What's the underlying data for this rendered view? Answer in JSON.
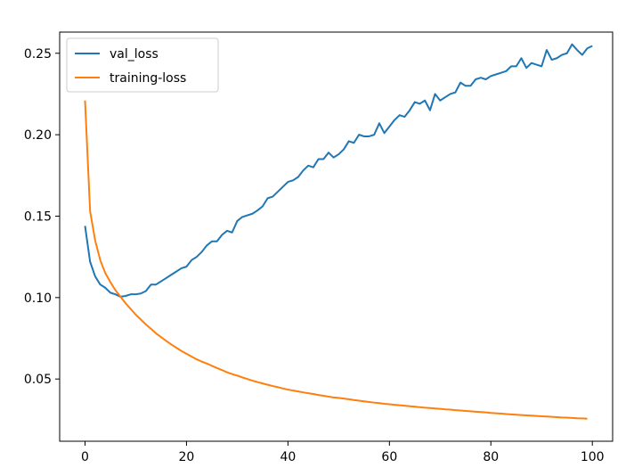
{
  "chart_data": {
    "type": "line",
    "title": "",
    "xlabel": "",
    "ylabel": "",
    "xlim": [
      -5,
      104
    ],
    "ylim": [
      0.0118,
      0.263
    ],
    "grid": false,
    "legend_position": "top-left",
    "x_ticks": [
      {
        "value": 0,
        "label": "0"
      },
      {
        "value": 20,
        "label": "20"
      },
      {
        "value": 40,
        "label": "40"
      },
      {
        "value": 60,
        "label": "60"
      },
      {
        "value": 80,
        "label": "80"
      },
      {
        "value": 100,
        "label": "100"
      }
    ],
    "y_ticks": [
      {
        "value": 0.05,
        "label": "0.05"
      },
      {
        "value": 0.1,
        "label": "0.10"
      },
      {
        "value": 0.15,
        "label": "0.15"
      },
      {
        "value": 0.2,
        "label": "0.20"
      },
      {
        "value": 0.25,
        "label": "0.25"
      }
    ],
    "series": [
      {
        "name": "val_loss",
        "color": "#1f77b4",
        "values": [
          0.144,
          0.122,
          0.113,
          0.108,
          0.106,
          0.103,
          0.102,
          0.1005,
          0.101,
          0.102,
          0.102,
          0.1025,
          0.104,
          0.108,
          0.108,
          0.11,
          0.112,
          0.114,
          0.116,
          0.118,
          0.119,
          0.123,
          0.125,
          0.128,
          0.132,
          0.1345,
          0.1345,
          0.1385,
          0.141,
          0.14,
          0.147,
          0.1495,
          0.1505,
          0.1515,
          0.1535,
          0.156,
          0.161,
          0.162,
          0.165,
          0.168,
          0.171,
          0.172,
          0.174,
          0.178,
          0.181,
          0.18,
          0.185,
          0.185,
          0.189,
          0.186,
          0.188,
          0.191,
          0.196,
          0.195,
          0.2,
          0.199,
          0.199,
          0.2,
          0.207,
          0.201,
          0.205,
          0.209,
          0.212,
          0.211,
          0.215,
          0.22,
          0.219,
          0.221,
          0.215,
          0.225,
          0.221,
          0.223,
          0.225,
          0.226,
          0.232,
          0.23,
          0.23,
          0.234,
          0.235,
          0.234,
          0.236,
          0.237,
          0.238,
          0.239,
          0.242,
          0.242,
          0.247,
          0.241,
          0.244,
          0.243,
          0.242,
          0.252,
          0.246,
          0.247,
          0.249,
          0.25,
          0.2555,
          0.252,
          0.249,
          0.253,
          0.2545
        ]
      },
      {
        "name": "training-loss",
        "color": "#ff7f0e",
        "values": [
          0.221,
          0.153,
          0.135,
          0.123,
          0.115,
          0.1095,
          0.1045,
          0.1005,
          0.0965,
          0.093,
          0.0895,
          0.0865,
          0.0835,
          0.0808,
          0.078,
          0.0757,
          0.0734,
          0.0712,
          0.0692,
          0.0672,
          0.0655,
          0.0638,
          0.0621,
          0.0607,
          0.0595,
          0.0581,
          0.0568,
          0.0555,
          0.0541,
          0.053,
          0.0521,
          0.051,
          0.05,
          0.049,
          0.0481,
          0.0473,
          0.0465,
          0.0457,
          0.045,
          0.0442,
          0.0435,
          0.0429,
          0.0424,
          0.0418,
          0.0413,
          0.0408,
          0.0402,
          0.0397,
          0.0392,
          0.0387,
          0.0384,
          0.038,
          0.0376,
          0.0371,
          0.0367,
          0.0363,
          0.0359,
          0.0355,
          0.0352,
          0.0348,
          0.0345,
          0.0342,
          0.0339,
          0.0336,
          0.0333,
          0.033,
          0.0327,
          0.0324,
          0.0322,
          0.0319,
          0.0317,
          0.0314,
          0.0312,
          0.0309,
          0.0307,
          0.0304,
          0.0302,
          0.0299,
          0.0297,
          0.0295,
          0.0292,
          0.029,
          0.0288,
          0.0285,
          0.0283,
          0.0281,
          0.0279,
          0.0277,
          0.0275,
          0.0273,
          0.0271,
          0.027,
          0.0268,
          0.0266,
          0.0264,
          0.0263,
          0.0261,
          0.0259,
          0.0258,
          0.0256
        ]
      }
    ]
  }
}
